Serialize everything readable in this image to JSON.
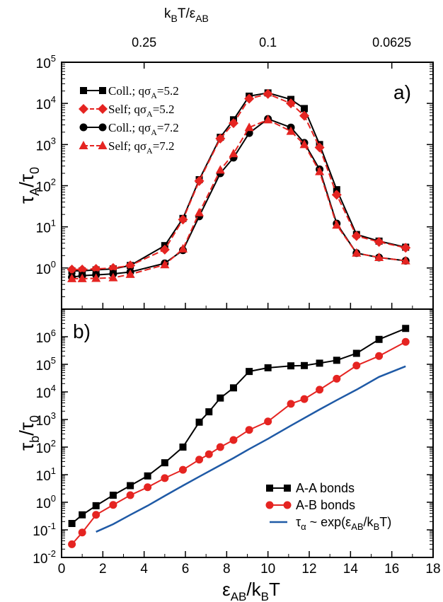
{
  "chart_data": [
    {
      "panel": "a",
      "type": "line",
      "panel_label": "a)",
      "y_scale": "log",
      "xlim": [
        0,
        18
      ],
      "ylim_exponents": [
        -1,
        5
      ],
      "top_axis": {
        "label_main": "k",
        "label_main_sub": "B",
        "label_rest": "T/ε",
        "label_rest_sub": "AB",
        "ticks": [
          {
            "x": 4,
            "label": "0.25"
          },
          {
            "x": 10,
            "label": "0.1"
          },
          {
            "x": 16,
            "label": "0.0625"
          }
        ]
      },
      "ylabel": {
        "main": "τ",
        "main_sub": "A",
        "rest": "/τ",
        "rest_sub": "0"
      },
      "series": [
        {
          "name": "Coll.; qσ_A=5.2",
          "legend": {
            "pre": "Coll.; qσ",
            "sub": "A",
            "post": "=5.2"
          },
          "color": "#000000",
          "marker": "square",
          "dashed": false,
          "x": [
            0.5,
            1.0,
            1.67,
            2.5,
            3.33,
            5.0,
            5.88,
            6.67,
            7.69,
            8.33,
            9.09,
            10.0,
            11.11,
            11.76,
            12.5,
            13.33,
            14.29,
            15.38,
            16.67
          ],
          "y": [
            0.85,
            0.85,
            0.9,
            0.95,
            1.15,
            3.5,
            16,
            140,
            1500,
            4000,
            15000,
            18000,
            12500,
            7500,
            1000,
            80,
            6.5,
            4.5,
            3.2
          ]
        },
        {
          "name": "Self; qσ_A=5.2",
          "legend": {
            "pre": "Self; qσ",
            "sub": "A",
            "post": "=5.2"
          },
          "color": "#e52421",
          "marker": "diamond",
          "dashed": true,
          "x": [
            0.5,
            1.0,
            1.67,
            2.5,
            3.33,
            5.0,
            5.88,
            6.67,
            7.69,
            8.33,
            9.09,
            10.0,
            11.11,
            11.76,
            12.5,
            13.33,
            14.29,
            15.38,
            16.67
          ],
          "y": [
            0.92,
            0.92,
            0.95,
            1.0,
            1.15,
            2.8,
            15,
            130,
            1400,
            3300,
            13000,
            17000,
            10000,
            5000,
            850,
            60,
            6.0,
            4.3,
            3.1
          ]
        },
        {
          "name": "Coll.; qσ_A=7.2",
          "legend": {
            "pre": "Coll.; qσ",
            "sub": "A",
            "post": "=7.2"
          },
          "color": "#000000",
          "marker": "circle",
          "dashed": false,
          "x": [
            0.5,
            1.0,
            1.67,
            2.5,
            3.33,
            5.0,
            5.88,
            6.67,
            7.69,
            8.33,
            9.09,
            10.0,
            11.11,
            11.76,
            12.5,
            13.33,
            14.29,
            15.38,
            16.67
          ],
          "y": [
            0.6,
            0.65,
            0.68,
            0.72,
            0.8,
            1.3,
            2.7,
            18,
            200,
            480,
            1900,
            4200,
            2600,
            1100,
            250,
            12,
            2.3,
            1.8,
            1.5
          ]
        },
        {
          "name": "Self; qσ_A=7.2",
          "legend": {
            "pre": "Self; qσ",
            "sub": "A",
            "post": "=7.2"
          },
          "color": "#e52421",
          "marker": "triangle",
          "dashed": true,
          "x": [
            0.5,
            1.0,
            1.67,
            2.5,
            3.33,
            5.0,
            5.88,
            6.67,
            7.69,
            8.33,
            9.09,
            10.0,
            11.11,
            11.76,
            12.5,
            13.33,
            14.29,
            15.38,
            16.67
          ],
          "y": [
            0.55,
            0.55,
            0.56,
            0.58,
            0.7,
            1.2,
            2.9,
            22,
            240,
            600,
            2600,
            4000,
            2100,
            1000,
            220,
            11,
            2.3,
            1.8,
            1.5
          ]
        }
      ]
    },
    {
      "panel": "b",
      "type": "line",
      "panel_label": "b)",
      "y_scale": "log",
      "xlim": [
        0,
        18
      ],
      "ylim_exponents": [
        -2,
        7
      ],
      "xticks": [
        0,
        2,
        4,
        6,
        8,
        10,
        12,
        14,
        16,
        18
      ],
      "xlabel": {
        "main": "ε",
        "main_sub": "AB",
        "rest": "/k",
        "rest_sub": "B",
        "tail": "T"
      },
      "ylabel": {
        "main": "τ",
        "main_sub": "b",
        "rest": "/τ",
        "rest_sub": "0"
      },
      "series": [
        {
          "name": "A-A bonds",
          "legend": {
            "pre": "A-A bonds",
            "sub": "",
            "post": ""
          },
          "color": "#000000",
          "marker": "square",
          "x": [
            0.5,
            1.0,
            1.67,
            2.5,
            3.33,
            4.17,
            5.0,
            5.88,
            6.67,
            7.14,
            7.69,
            8.33,
            9.09,
            10.0,
            11.11,
            11.76,
            12.5,
            13.33,
            14.29,
            15.38,
            16.67
          ],
          "y": [
            0.17,
            0.35,
            0.75,
            1.8,
            4.0,
            9.0,
            27,
            100,
            800,
            1900,
            6000,
            14000,
            55000,
            75000,
            88000,
            90000,
            110000,
            140000,
            250000,
            800000,
            2000000
          ]
        },
        {
          "name": "A-B bonds",
          "legend": {
            "pre": "A-B bonds",
            "sub": "",
            "post": ""
          },
          "color": "#e52421",
          "marker": "circle",
          "x": [
            0.5,
            1.0,
            1.67,
            2.5,
            3.33,
            4.17,
            5.0,
            5.88,
            6.67,
            7.14,
            7.69,
            8.33,
            9.09,
            10.0,
            11.11,
            11.76,
            12.5,
            13.33,
            14.29,
            15.38,
            16.67
          ],
          "y": [
            0.03,
            0.08,
            0.35,
            0.8,
            1.8,
            3.5,
            7.5,
            15,
            35,
            55,
            100,
            180,
            420,
            850,
            3700,
            5500,
            12000,
            30000,
            90000,
            200000,
            650000
          ]
        },
        {
          "name": "τ_α ~ exp(ε_AB/k_BT)",
          "legend": {
            "pre": "τ",
            "sub": "α",
            "post": " ~ exp(ε",
            "sub2": "AB",
            "post2": "/k",
            "sub3": "B",
            "post3": "T)"
          },
          "color": "#1f5aa6",
          "marker": "none",
          "x": [
            1.67,
            2.5,
            3.33,
            4.17,
            5.0,
            5.88,
            6.67,
            7.69,
            8.33,
            9.09,
            10.0,
            11.11,
            12.5,
            13.33,
            14.29,
            15.38,
            16.67
          ],
          "y": [
            0.085,
            0.16,
            0.35,
            0.75,
            1.7,
            4.0,
            8.5,
            22,
            40,
            85,
            200,
            600,
            2300,
            5000,
            12000,
            35000,
            85000
          ]
        }
      ]
    }
  ]
}
